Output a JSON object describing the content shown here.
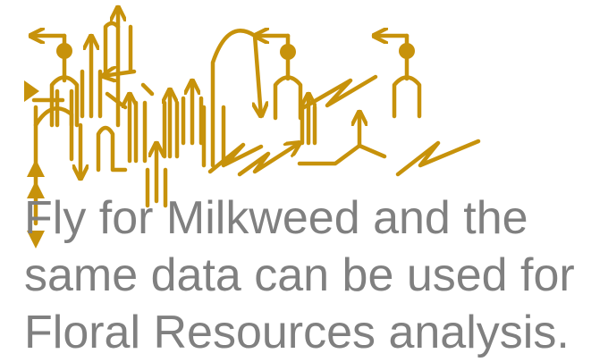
{
  "caption": {
    "text": "Fly for Milkweed and the\nsame data can be used for\nFloral Resources analysis.",
    "color": "#808080"
  },
  "artwork": {
    "name": "arrow-glyph-artwork",
    "color": "#c7920b"
  }
}
